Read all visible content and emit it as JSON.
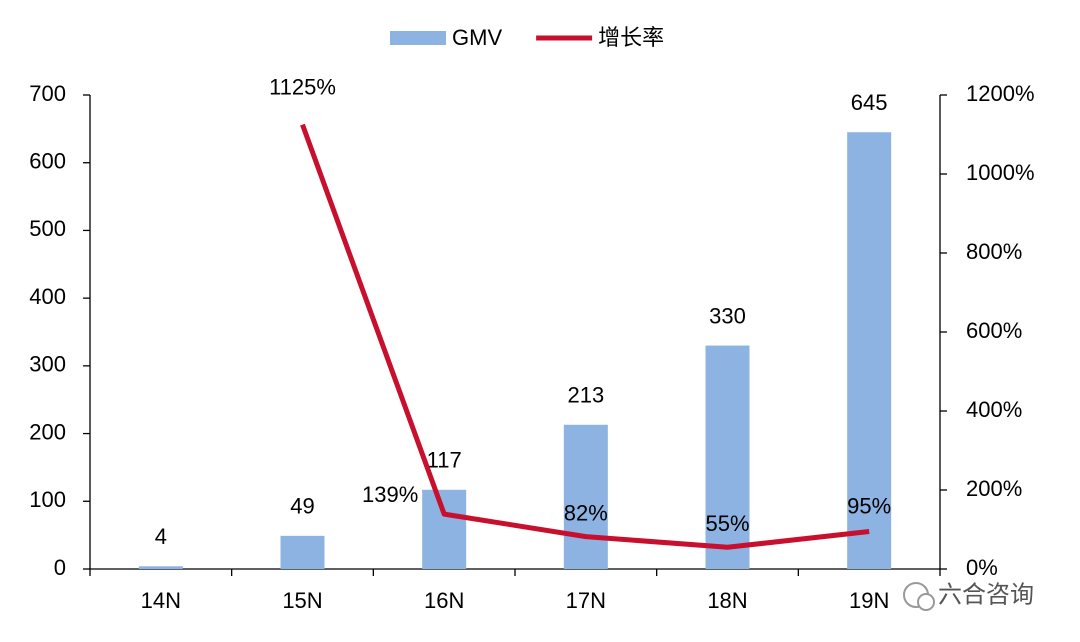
{
  "chart_data": {
    "type": "bar_line",
    "categories": [
      "14N",
      "15N",
      "16N",
      "17N",
      "18N",
      "19N"
    ],
    "series": [
      {
        "name": "GMV",
        "type": "bar",
        "color": "#8db3e2",
        "values": [
          4,
          49,
          117,
          213,
          330,
          645
        ]
      },
      {
        "name": "增长率",
        "type": "line",
        "axis": "y2",
        "color": "#c8102e",
        "values": [
          null,
          1125,
          139,
          82,
          55,
          95
        ],
        "value_labels": [
          null,
          "1125%",
          "139%",
          "82%",
          "55%",
          "95%"
        ]
      }
    ],
    "ylim": [
      0,
      700
    ],
    "yticks": [
      0,
      100,
      200,
      300,
      400,
      500,
      600,
      700
    ],
    "y2lim": [
      0,
      1200
    ],
    "y2ticks": [
      {
        "value": 0,
        "label": "0%"
      },
      {
        "value": 200,
        "label": "200%"
      },
      {
        "value": 400,
        "label": "400%"
      },
      {
        "value": 600,
        "label": "600%"
      },
      {
        "value": 800,
        "label": "800%"
      },
      {
        "value": 1000,
        "label": "1000%"
      },
      {
        "value": 1200,
        "label": "1200%"
      }
    ],
    "legend": "top"
  },
  "watermark": "六合咨询"
}
